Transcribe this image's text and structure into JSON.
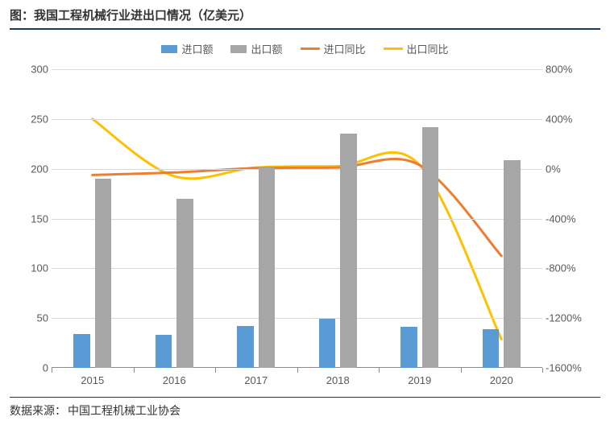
{
  "title": "图：我国工程机械行业进出口情况（亿美元）",
  "source_label": "数据来源：",
  "source_value": "中国工程机械工业协会",
  "legend": {
    "import_bar": {
      "label": "进口额",
      "color": "#5b9bd5"
    },
    "export_bar": {
      "label": "出口额",
      "color": "#a6a6a6"
    },
    "import_line": {
      "label": "进口同比",
      "color": "#ed7d31"
    },
    "export_line": {
      "label": "出口同比",
      "color": "#ffc000"
    }
  },
  "chart": {
    "type": "bar-line-combo",
    "background_color": "#ffffff",
    "grid_color": "#d9d9d9",
    "axis_color": "#8a8a8a",
    "label_color": "#595959",
    "label_fontsize": 13,
    "categories": [
      "2015",
      "2016",
      "2017",
      "2018",
      "2019",
      "2020"
    ],
    "y_left": {
      "min": 0,
      "max": 300,
      "step": 50,
      "ticks": [
        0,
        50,
        100,
        150,
        200,
        250,
        300
      ]
    },
    "y_right": {
      "min": -1600,
      "max": 800,
      "step": 400,
      "ticks": [
        -1600,
        -1200,
        -800,
        -400,
        0,
        400,
        800
      ],
      "suffix": "%"
    },
    "series": {
      "import_bar": {
        "axis": "left",
        "values": [
          34,
          33,
          42,
          49,
          41,
          39
        ],
        "bar_width_frac": 0.2
      },
      "export_bar": {
        "axis": "left",
        "values": [
          190,
          170,
          201,
          235,
          242,
          209
        ],
        "bar_width_frac": 0.2
      },
      "import_line": {
        "axis": "right",
        "values": [
          -50,
          -30,
          5,
          10,
          30,
          -700
        ],
        "line_width": 3
      },
      "export_line": {
        "axis": "right",
        "values": [
          400,
          -60,
          10,
          20,
          30,
          -1370
        ],
        "line_width": 3
      }
    }
  }
}
